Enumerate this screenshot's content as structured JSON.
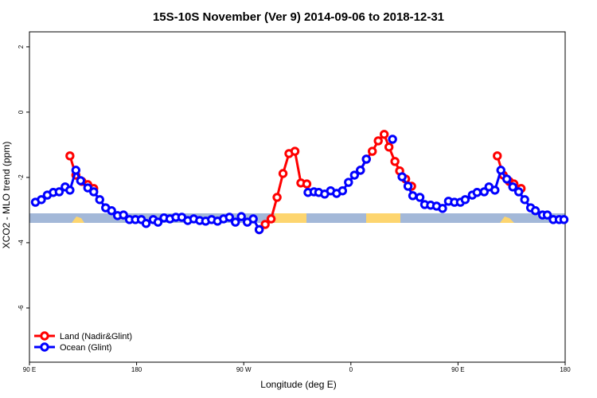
{
  "chart_data": {
    "type": "line",
    "title": "15S-10S November (Ver 9)   2014-09-06 to 2018-12-31",
    "x_label": "Longitude (deg E)",
    "y_label": "XCO2 - MLO trend (ppm)",
    "xlim": [
      90,
      540
    ],
    "ylim": [
      -7.66,
      2.46
    ],
    "xticks": [
      {
        "value": 90,
        "label": "90 E"
      },
      180,
      {
        "value": 270,
        "label": "90 W"
      },
      {
        "value": 360,
        "label": "0"
      },
      {
        "value": 450,
        "label": "90 E"
      },
      {
        "value": 540,
        "label": "180"
      }
    ],
    "yticks": [
      2,
      0,
      -2,
      -4,
      -6
    ],
    "legend": "bottom-left",
    "series": [
      {
        "name": "Land (Nadir&Glint)",
        "color": "#ff0000",
        "x": [
          124,
          129,
          134,
          139,
          144,
          null,
          283,
          288,
          293,
          298,
          303,
          308,
          313,
          318,
          323,
          null,
          368,
          373,
          378,
          383,
          388,
          392,
          397,
          401,
          406,
          411,
          null,
          483,
          488,
          493,
          497,
          503
        ],
        "values": [
          -1.34,
          -1.93,
          -2.12,
          -2.22,
          -2.34,
          null,
          -3.6,
          -3.44,
          -3.27,
          -2.61,
          -1.88,
          -1.27,
          -1.2,
          -2.17,
          -2.2,
          null,
          -1.78,
          -1.44,
          -1.2,
          -0.88,
          -0.68,
          -1.07,
          -1.51,
          -1.8,
          -2.05,
          -2.27,
          null,
          -1.34,
          -1.93,
          -2.12,
          -2.2,
          -2.34
        ]
      },
      {
        "name": "Ocean (Glint)",
        "color": "#0000ff",
        "x": [
          95,
          100,
          105,
          110,
          115,
          120,
          124,
          129,
          133,
          139,
          144,
          149,
          154,
          159,
          164,
          169,
          174,
          179,
          184,
          188,
          194,
          198,
          203,
          208,
          213,
          218,
          223,
          228,
          233,
          238,
          243,
          248,
          253,
          258,
          263,
          268,
          273,
          278,
          283,
          null,
          324,
          329,
          333,
          338,
          343,
          348,
          353,
          358,
          363,
          368,
          373,
          null,
          395,
          null,
          403,
          408,
          412,
          418,
          422,
          427,
          432,
          437,
          442,
          447,
          452,
          456,
          462,
          466,
          472,
          476,
          481,
          486,
          491,
          496,
          501,
          506,
          511,
          515,
          521,
          525,
          530,
          535,
          539
        ],
        "values": [
          -2.76,
          -2.68,
          -2.54,
          -2.46,
          -2.44,
          -2.29,
          -2.39,
          -1.78,
          -2.1,
          -2.32,
          -2.44,
          -2.68,
          -2.93,
          -3.02,
          -3.17,
          -3.15,
          -3.29,
          -3.29,
          -3.29,
          -3.41,
          -3.29,
          -3.37,
          -3.24,
          -3.27,
          -3.22,
          -3.22,
          -3.32,
          -3.27,
          -3.32,
          -3.34,
          -3.29,
          -3.34,
          -3.27,
          -3.22,
          -3.37,
          -3.2,
          -3.37,
          -3.27,
          -3.6,
          null,
          -2.46,
          -2.44,
          -2.46,
          -2.51,
          -2.41,
          -2.49,
          -2.41,
          -2.15,
          -1.93,
          -1.78,
          -1.44,
          null,
          -0.83,
          null,
          -1.98,
          -2.27,
          -2.56,
          -2.61,
          -2.83,
          -2.85,
          -2.88,
          -2.95,
          -2.73,
          -2.76,
          -2.76,
          -2.68,
          -2.54,
          -2.46,
          -2.44,
          -2.29,
          -2.39,
          -1.78,
          -2.05,
          -2.29,
          -2.44,
          -2.68,
          -2.93,
          -3.02,
          -3.15,
          -3.15,
          -3.29,
          -3.29,
          -3.29
        ]
      }
    ]
  }
}
